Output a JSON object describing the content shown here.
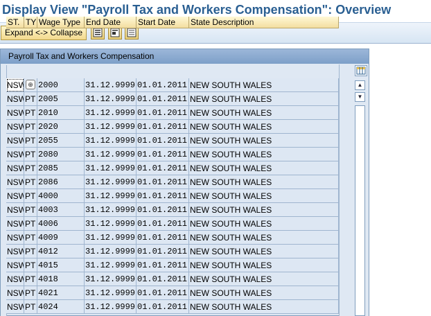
{
  "window": {
    "title": "Display View \"Payroll Tax and Workers Compensation\": Overview"
  },
  "toolbar": {
    "expand_collapse_label": "Expand <-> Collapse",
    "icons": [
      "select-all-icon",
      "select-block-icon",
      "deselect-all-icon"
    ]
  },
  "table": {
    "title": "Payroll Tax and Workers Compensation",
    "columns": [
      "ST.",
      "TY",
      "Wage Type",
      "End Date",
      "Start Date",
      "State Description"
    ],
    "rows": [
      [
        "NSW",
        "",
        "2000",
        "31.12.9999",
        "01.01.2011",
        "NEW SOUTH WALES"
      ],
      [
        "NSW",
        "PT",
        "2005",
        "31.12.9999",
        "01.01.2011",
        "NEW SOUTH WALES"
      ],
      [
        "NSW",
        "PT",
        "2010",
        "31.12.9999",
        "01.01.2011",
        "NEW SOUTH WALES"
      ],
      [
        "NSW",
        "PT",
        "2020",
        "31.12.9999",
        "01.01.2011",
        "NEW SOUTH WALES"
      ],
      [
        "NSW",
        "PT",
        "2055",
        "31.12.9999",
        "01.01.2011",
        "NEW SOUTH WALES"
      ],
      [
        "NSW",
        "PT",
        "2080",
        "31.12.9999",
        "01.01.2011",
        "NEW SOUTH WALES"
      ],
      [
        "NSW",
        "PT",
        "2085",
        "31.12.9999",
        "01.01.2011",
        "NEW SOUTH WALES"
      ],
      [
        "NSW",
        "PT",
        "2086",
        "31.12.9999",
        "01.01.2011",
        "NEW SOUTH WALES"
      ],
      [
        "NSW",
        "PT",
        "4000",
        "31.12.9999",
        "01.01.2011",
        "NEW SOUTH WALES"
      ],
      [
        "NSW",
        "PT",
        "4003",
        "31.12.9999",
        "01.01.2011",
        "NEW SOUTH WALES"
      ],
      [
        "NSW",
        "PT",
        "4006",
        "31.12.9999",
        "01.01.2011",
        "NEW SOUTH WALES"
      ],
      [
        "NSW",
        "PT",
        "4009",
        "31.12.9999",
        "01.01.2011",
        "NEW SOUTH WALES"
      ],
      [
        "NSW",
        "PT",
        "4012",
        "31.12.9999",
        "01.01.2011",
        "NEW SOUTH WALES"
      ],
      [
        "NSW",
        "PT",
        "4015",
        "31.12.9999",
        "01.01.2011",
        "NEW SOUTH WALES"
      ],
      [
        "NSW",
        "PT",
        "4018",
        "31.12.9999",
        "01.01.2011",
        "NEW SOUTH WALES"
      ],
      [
        "NSW",
        "PT",
        "4021",
        "31.12.9999",
        "01.01.2011",
        "NEW SOUTH WALES"
      ],
      [
        "NSW",
        "PT",
        "4024",
        "31.12.9999",
        "01.01.2011",
        "NEW SOUTH WALES"
      ]
    ]
  },
  "colors": {
    "title": "#2a5f92",
    "header_bg": "#f3dea0",
    "row_bg": "#dde7f3"
  }
}
